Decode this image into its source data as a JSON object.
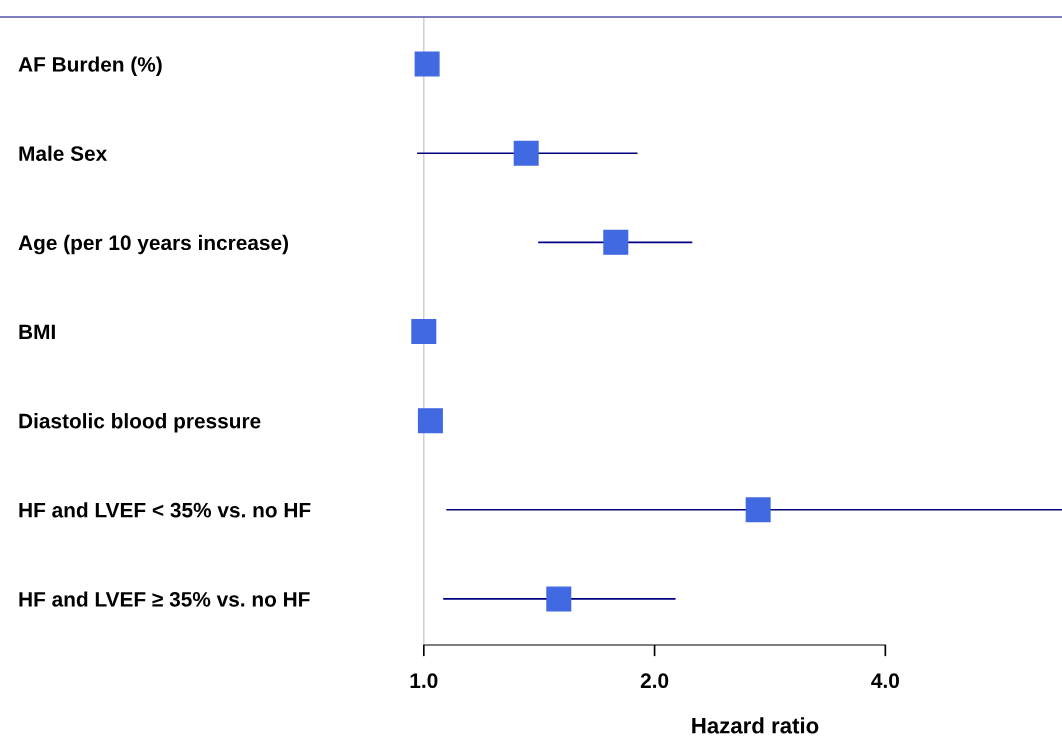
{
  "chart_data": {
    "type": "scatter",
    "orientation": "horizontal",
    "xlabel": "Hazard ratio",
    "categories": [
      "AF Burden (%)",
      "Male Sex",
      "Age (per 10 years increase)",
      "BMI",
      "Diastolic blood pressure",
      "HF and LVEF < 35% vs. no HF",
      "HF and LVEF ≥ 35% vs. no HF"
    ],
    "series": [
      {
        "color": "#4169e1",
        "values": [
          1.01,
          1.36,
          1.78,
          1.0,
          1.02,
          2.73,
          1.5
        ],
        "errors": [
          null,
          [
            0.98,
            1.9
          ],
          [
            1.41,
            2.24
          ],
          null,
          null,
          [
            1.07,
            6.8
          ],
          [
            1.06,
            2.13
          ]
        ]
      }
    ],
    "log": "x",
    "xlim": [
      0.28,
      6.8
    ],
    "xticks": [
      {
        "value": 1,
        "label": "1.0"
      },
      {
        "value": 2,
        "label": "2.0"
      },
      {
        "value": 4,
        "label": "4.0"
      }
    ],
    "ref_lines": [
      {
        "axis": "x",
        "value": 1,
        "color": "#cccccc"
      }
    ],
    "marker": "square",
    "grid": false,
    "legend": false
  }
}
